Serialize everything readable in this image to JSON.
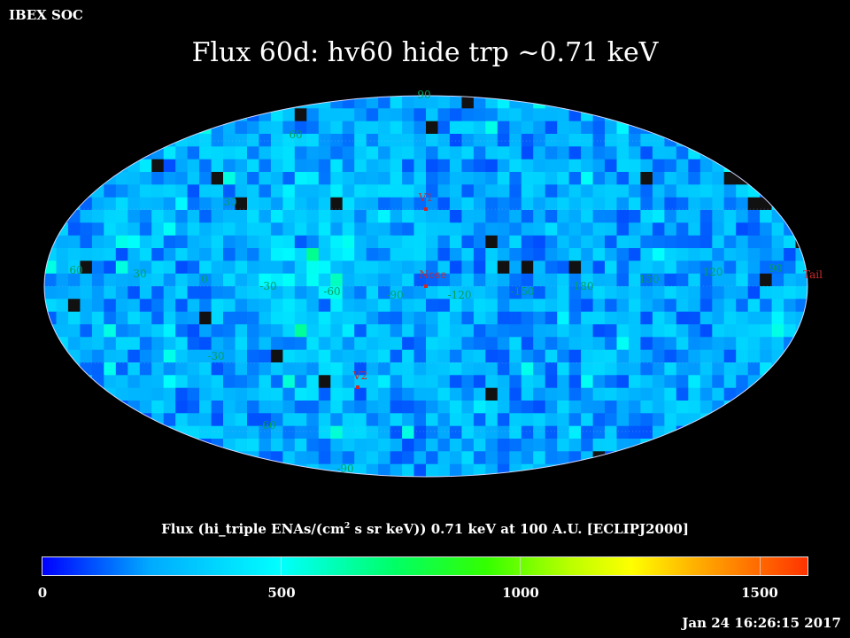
{
  "header": {
    "corner_label": "IBEX SOC",
    "title": "Flux   60d: hv60 hide trp ~0.71 keV"
  },
  "caption": {
    "prefix": "Flux (hi_triple ENAs/(cm",
    "sup": "2",
    "suffix": " s sr keV))  0.71 keV at 100 A.U. [ECLIPJ2000]"
  },
  "timestamp": "Jan 24 16:26:15 2017",
  "colorbar": {
    "labels": [
      "0",
      "500",
      "1000",
      "1500"
    ]
  },
  "colors": {
    "grid_label": "#00a060",
    "marker": "#cc2a2a"
  },
  "chart_data": {
    "type": "heatmap",
    "projection": "mollweide",
    "title": "Flux   60d: hv60 hide trp ~0.71 keV",
    "colorbar_label": "Flux (hi_triple ENAs/(cm^2 s sr keV))  0.71 keV at 100 A.U. [ECLIPJ2000]",
    "value_range": [
      0,
      1600
    ],
    "colorbar_ticks": [
      0,
      500,
      1000,
      1500
    ],
    "typical_value_range": [
      100,
      500
    ],
    "longitude_labels": [
      "60",
      "30",
      "0",
      "-30",
      "-60",
      "-90",
      "-120",
      "-150",
      "180",
      "150",
      "120",
      "90"
    ],
    "latitude_labels": [
      "90",
      "60",
      "30",
      "-30",
      "-60",
      "-90"
    ],
    "markers": [
      {
        "name": "V1",
        "lon": -105,
        "lat": 35
      },
      {
        "name": "Nose",
        "lon": -105,
        "lat": 5
      },
      {
        "name": "V2",
        "lon": -75,
        "lat": -32
      },
      {
        "name": "Tail",
        "lon": 75,
        "lat": 0
      }
    ]
  }
}
